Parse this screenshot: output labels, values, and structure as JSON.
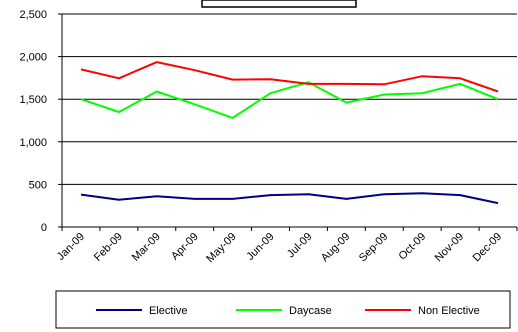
{
  "chart_data": {
    "type": "line",
    "title": "",
    "xlabel": "",
    "ylabel": "",
    "categories": [
      "Jan-09",
      "Feb-09",
      "Mar-09",
      "Apr-09",
      "May-09",
      "Jun-09",
      "Jul-09",
      "Aug-09",
      "Sep-09",
      "Oct-09",
      "Nov-09",
      "Dec-09"
    ],
    "ylim": [
      0,
      2500
    ],
    "yticks": [
      0,
      500,
      1000,
      1500,
      2000,
      2500
    ],
    "ytick_labels": [
      "0",
      "500",
      "1,000",
      "1,500",
      "2,000",
      "2,500"
    ],
    "grid": true,
    "legend_position": "bottom",
    "series": [
      {
        "name": "Elective",
        "color": "#000080",
        "values": [
          380,
          320,
          360,
          330,
          330,
          375,
          385,
          330,
          385,
          395,
          375,
          280
        ]
      },
      {
        "name": "Daycase",
        "color": "#00ff00",
        "values": [
          1500,
          1350,
          1590,
          1440,
          1280,
          1570,
          1700,
          1460,
          1555,
          1570,
          1680,
          1500
        ]
      },
      {
        "name": "Non Elective",
        "color": "#ff0000",
        "values": [
          1850,
          1745,
          1935,
          1840,
          1730,
          1735,
          1680,
          1680,
          1675,
          1770,
          1745,
          1590
        ]
      }
    ]
  }
}
